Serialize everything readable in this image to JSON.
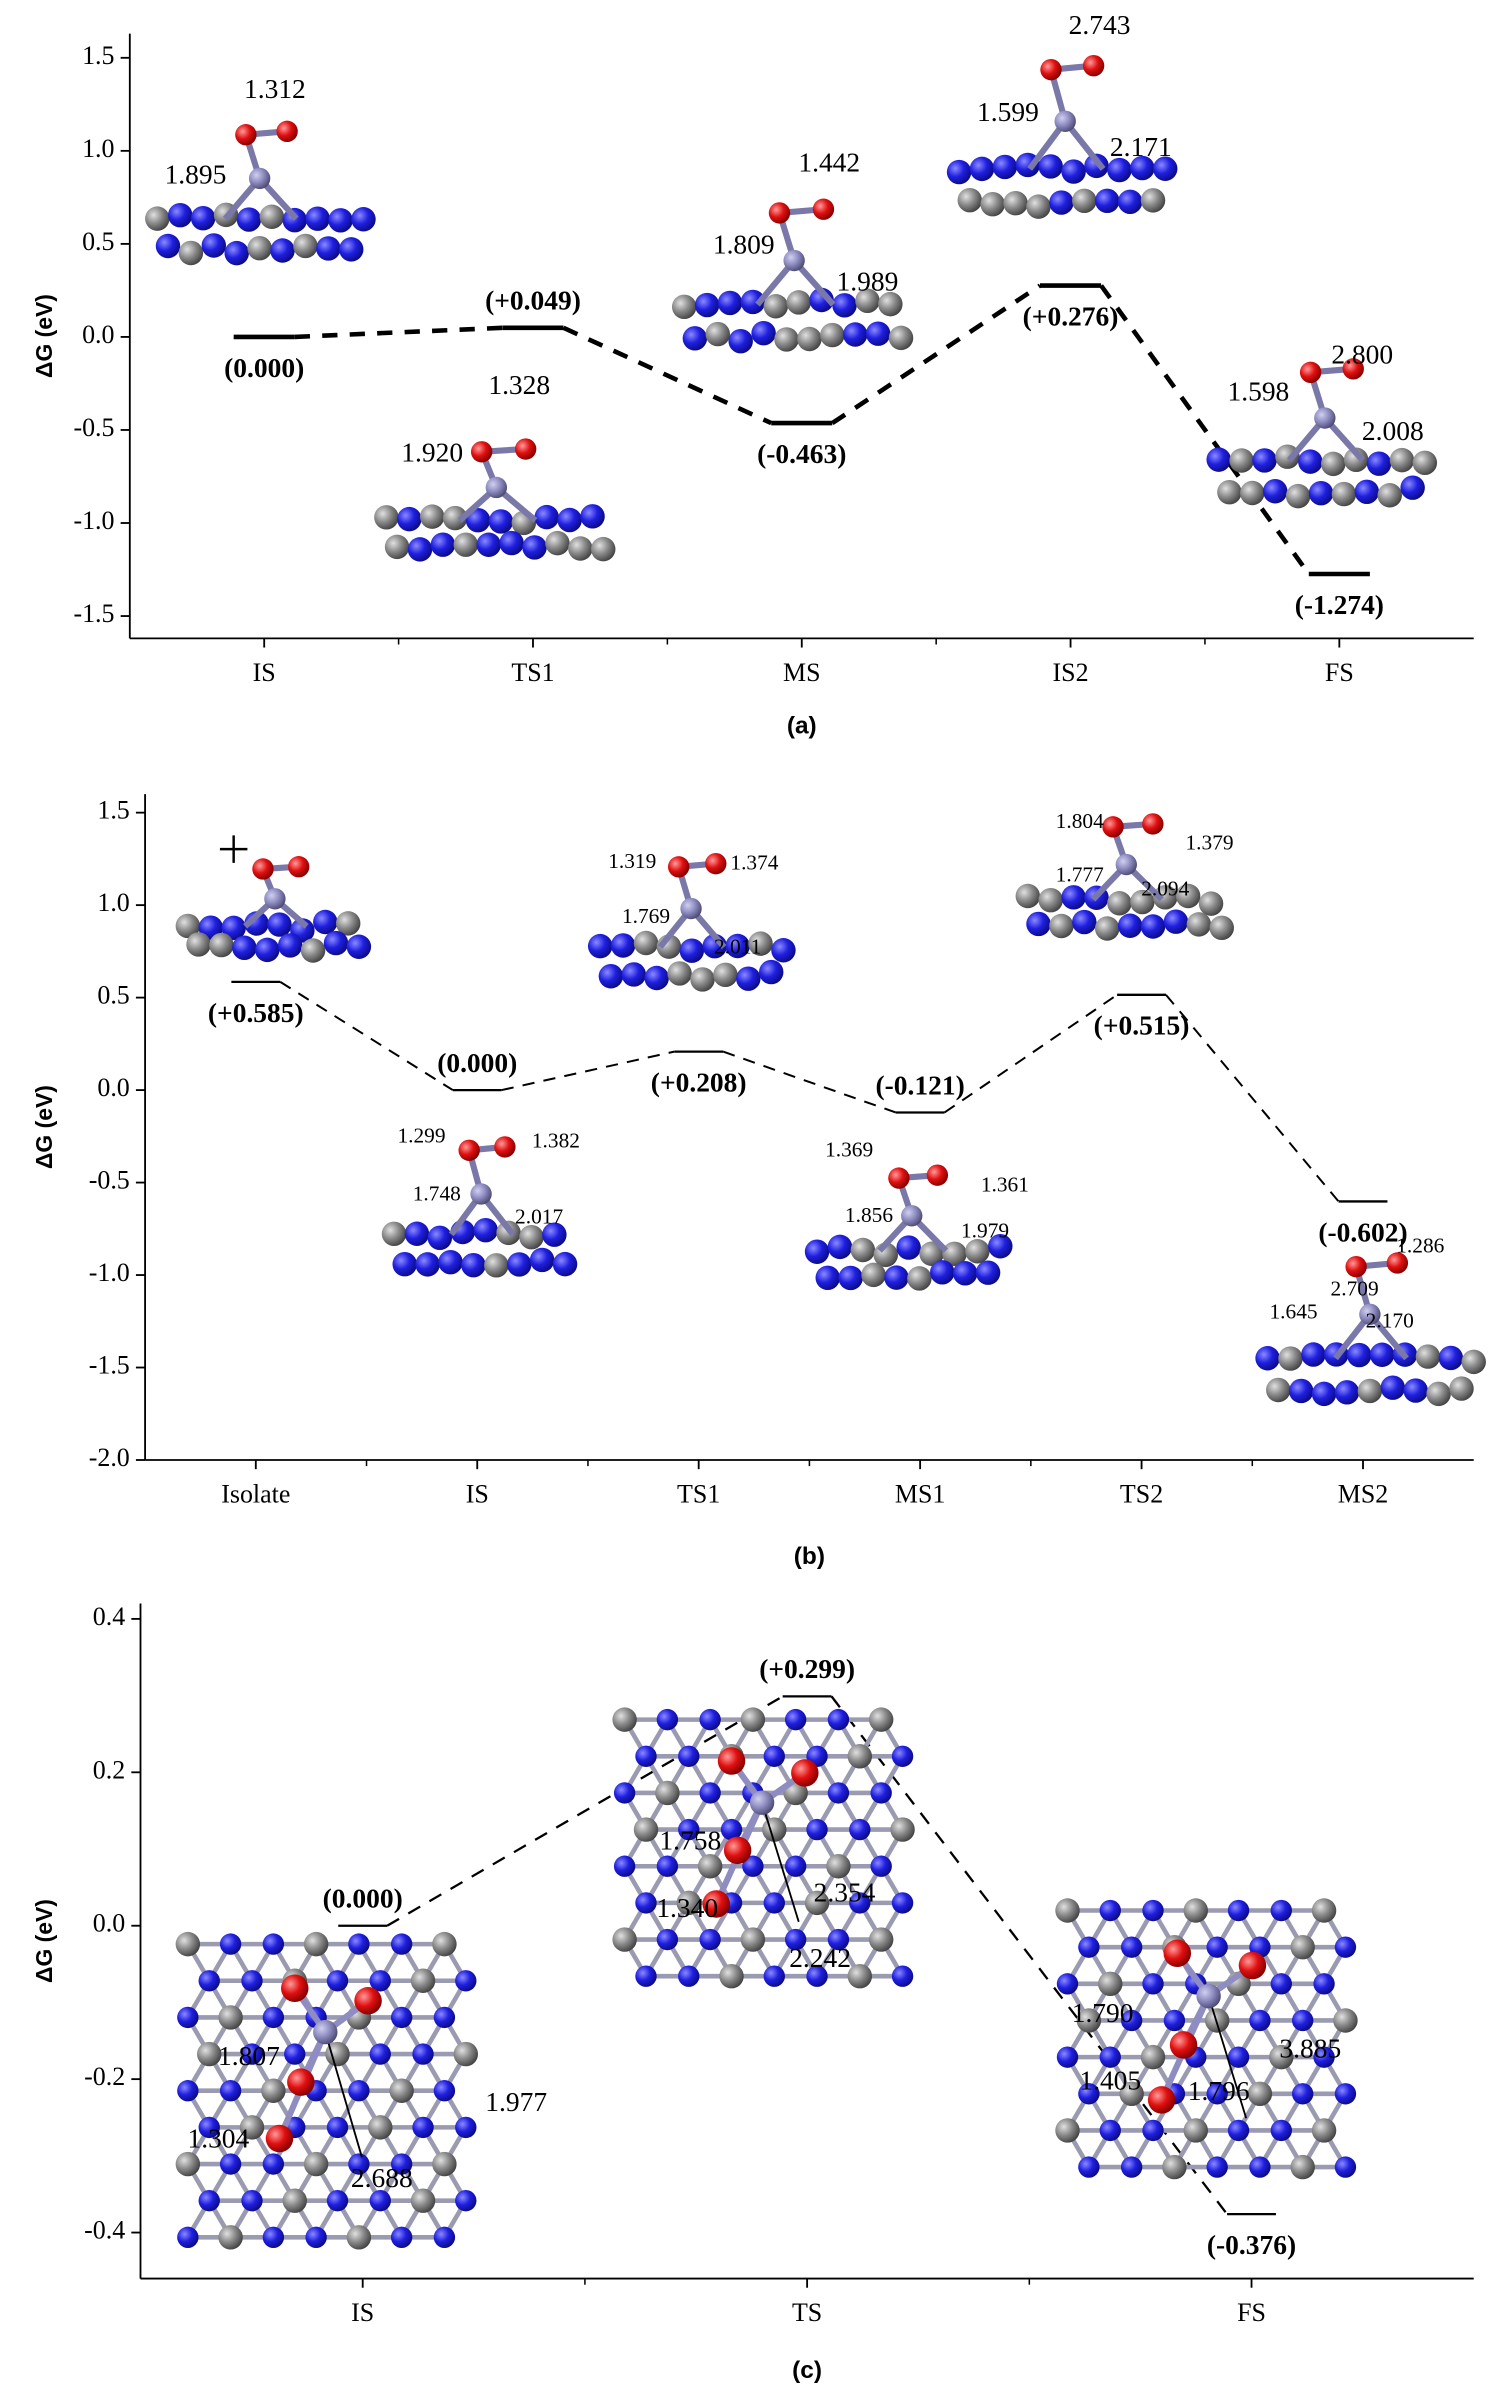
{
  "chart_data": [
    {
      "type": "energy",
      "caption": "(a)",
      "y_label": "ΔG (eV)",
      "categories": [
        "IS",
        "TS1",
        "MS",
        "IS2",
        "FS"
      ],
      "values": [
        0,
        0.049,
        -0.463,
        0.276,
        -1.274
      ],
      "value_labels": [
        "(0.000)",
        "(+0.049)",
        "(-0.463)",
        "(+0.276)",
        "(-1.274)"
      ],
      "ylim": [
        -1.62,
        1.63
      ],
      "yticks": [
        -1.5,
        {
          "value": -1,
          "label": "-1.0"
        },
        -0.5,
        {
          "value": 0,
          "label": "0.0"
        },
        0.5,
        {
          "value": 1,
          "label": "1.0"
        },
        1.5
      ],
      "color": "#000000",
      "annotations": [
        "1.312",
        "1.895",
        "1.328",
        "1.920",
        "1.442",
        "1.809",
        "1.989",
        "2.743",
        "1.599",
        "2.171",
        "2.800",
        "1.598",
        "2.008"
      ]
    },
    {
      "type": "energy",
      "caption": "(b)",
      "y_label": "ΔG (eV)",
      "categories": [
        "Isolate",
        "IS",
        "TS1",
        "MS1",
        "TS2",
        "MS2"
      ],
      "values": [
        0.585,
        0,
        0.208,
        -0.121,
        0.515,
        -0.602
      ],
      "value_labels": [
        "(+0.585)",
        "(0.000)",
        "(+0.208)",
        "(-0.121)",
        "(+0.515)",
        "(-0.602)"
      ],
      "ylim": [
        -2.0,
        1.6
      ],
      "yticks": [
        {
          "value": -2,
          "label": "-2.0"
        },
        -1.5,
        {
          "value": -1,
          "label": "-1.0"
        },
        -0.5,
        {
          "value": 0,
          "label": "0.0"
        },
        0.5,
        {
          "value": 1,
          "label": "1.0"
        },
        1.5
      ],
      "color": "#000000",
      "annotations": [
        "1.319",
        "1.374",
        "1.769",
        "2.011",
        "1.804",
        "1.379",
        "1.777",
        "2.094",
        "1.299",
        "1.382",
        "1.748",
        "2.017",
        "1.369",
        "1.361",
        "1.856",
        "1.979",
        "1.286",
        "2.709",
        "1.645",
        "2.170"
      ]
    },
    {
      "type": "energy",
      "caption": "(c)",
      "y_label": "ΔG (eV)",
      "categories": [
        "IS",
        "TS",
        "FS"
      ],
      "values": [
        0,
        0.299,
        -0.376
      ],
      "value_labels": [
        "(0.000)",
        "(+0.299)",
        "(-0.376)"
      ],
      "ylim": [
        -0.46,
        0.42
      ],
      "yticks": [
        -0.4,
        -0.2,
        {
          "value": 0,
          "label": "0.0"
        },
        0.2,
        0.4
      ],
      "color": "#000000",
      "annotations": [
        "1.758",
        "1.340",
        "2.354",
        "2.242",
        "1.807",
        "1.304",
        "2.688",
        "1.977",
        "1.790",
        "1.405",
        "1.796",
        "3.885"
      ]
    }
  ]
}
